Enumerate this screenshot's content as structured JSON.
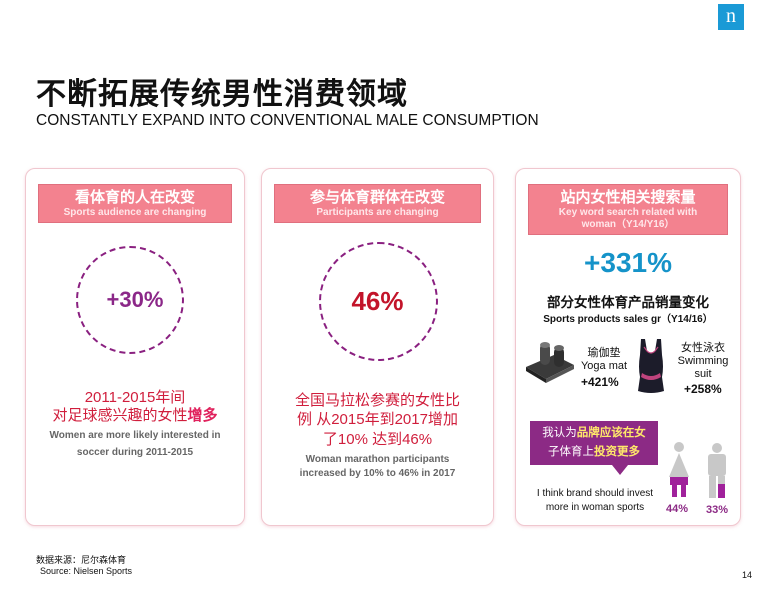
{
  "logo": {
    "text": "n",
    "color": "#1a9ad6"
  },
  "title_cn": "不断拓展传统男性消费领域",
  "title_en": "CONSTANTLY EXPAND INTO CONVENTIONAL MALE CONSUMPTION",
  "cards": [
    {
      "header_cn": "看体育的人在改变",
      "header_en": "Sports audience are changing",
      "value": "+30%",
      "text_cn_1": "2011-2015年间",
      "text_cn_2a": "对足球感兴趣的女性",
      "text_cn_2b": "增多",
      "text_en_1": "Women are more likely interested in",
      "text_en_2": "soccer during 2011-2015"
    },
    {
      "header_cn": "参与体育群体在改变",
      "header_en": "Participants are changing",
      "value": "46%",
      "text_cn_1": "全国马拉松参赛的女性比",
      "text_cn_2": "例 从2015年到2017增加",
      "text_cn_3": "了10% 达到46%",
      "text_en_1": "Woman marathon participants",
      "text_en_2": "increased by 10% to 46% in 2017"
    },
    {
      "header_cn": "站内女性相关搜索量",
      "header_en_1": "Key word search related with",
      "header_en_2": "woman（Y14/Y16）",
      "value": "+331%",
      "sub_cn": "部分女性体育产品销量变化",
      "sub_en": "Sports products sales gr（Y14/16）",
      "products": [
        {
          "name_cn": "瑜伽垫",
          "name_en": "Yoga mat",
          "value": "+421%"
        },
        {
          "name_cn": "女性泳衣",
          "name_en_1": "Swimming",
          "name_en_2": "suit",
          "value": "+258%"
        }
      ],
      "callout_1a": "我认为",
      "callout_1b": "品牌应该在女",
      "callout_2a": "子体育上",
      "callout_2b": "投资更多",
      "invest_en_1": "I think brand should invest",
      "invest_en_2": "more in woman sports",
      "women_pct": "44%",
      "men_pct": "33%"
    }
  ],
  "source_cn": "数据来源：尼尔森体育",
  "source_en": "Source: Nielsen Sports",
  "page_number": "14",
  "colors": {
    "header": "#f3828f",
    "purple": "#8c2a85",
    "red": "#c3142a",
    "blue": "#1593c9",
    "women_icon": "#a0219b",
    "men_icon": "#c8c8c8"
  }
}
